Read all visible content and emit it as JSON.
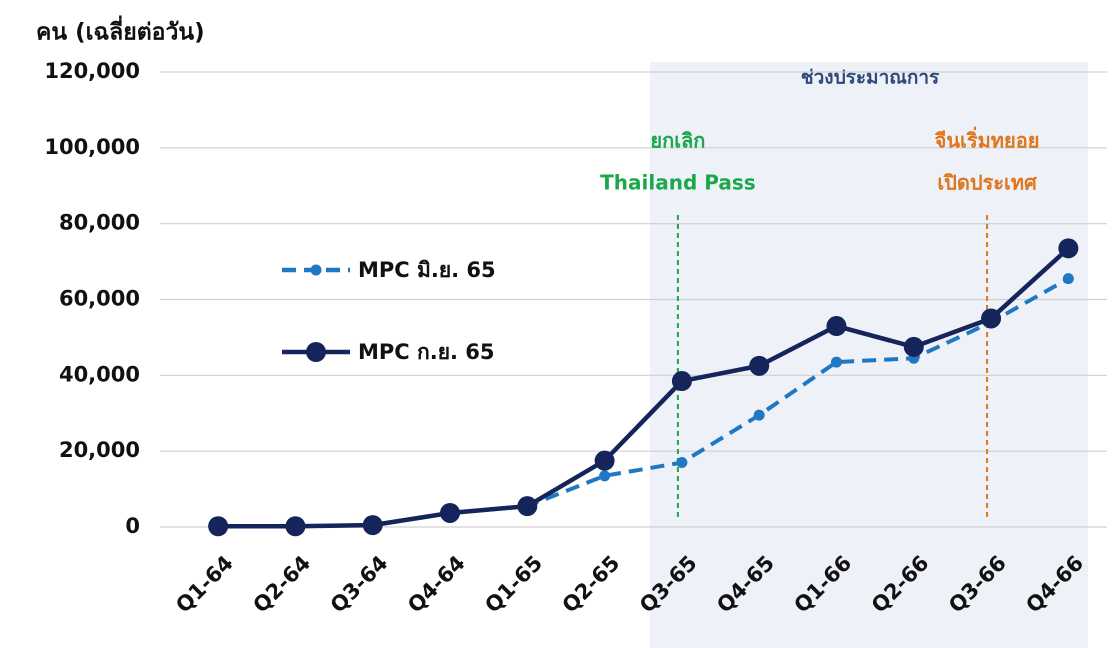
{
  "chart_data": {
    "type": "line",
    "y_axis_label": "คน (เฉลี่ยต่อวัน)",
    "categories": [
      "Q1-64",
      "Q2-64",
      "Q3-64",
      "Q4-64",
      "Q1-65",
      "Q2-65",
      "Q3-65",
      "Q4-65",
      "Q1-66",
      "Q2-66",
      "Q3-66",
      "Q4-66"
    ],
    "series": [
      {
        "name": "MPC มิ.ย. 65",
        "color": "#1f78c1",
        "dashed": true,
        "values": [
          200,
          200,
          500,
          3700,
          5500,
          13500,
          17000,
          29500,
          43500,
          44500,
          54000,
          65500
        ]
      },
      {
        "name": "MPC ก.ย. 65",
        "color": "#15245a",
        "dashed": false,
        "values": [
          200,
          200,
          500,
          3700,
          5500,
          17500,
          38500,
          42500,
          53000,
          47500,
          55000,
          73500
        ]
      }
    ],
    "ylim": [
      0,
      120000
    ],
    "yticks": [
      0,
      {
        "value": 20000,
        "label": "20,000"
      },
      {
        "value": 40000,
        "label": "40,000"
      },
      {
        "value": 60000,
        "label": "60,000"
      },
      {
        "value": 80000,
        "label": "80,000"
      },
      {
        "value": 100000,
        "label": "100,000"
      },
      {
        "value": 120000,
        "label": "120,000"
      }
    ],
    "grid": true,
    "forecast_label": "ช่วงประมาณการ",
    "annotations": [
      {
        "lines": [
          "ยกเลิก",
          "Thailand Pass"
        ],
        "color": "#1aa84a",
        "category": "Q3-65"
      },
      {
        "lines": [
          "จีนเริ่มทยอย",
          "เปิดประเทศ"
        ],
        "color": "#e0761c",
        "category": "Q3-66"
      }
    ]
  }
}
